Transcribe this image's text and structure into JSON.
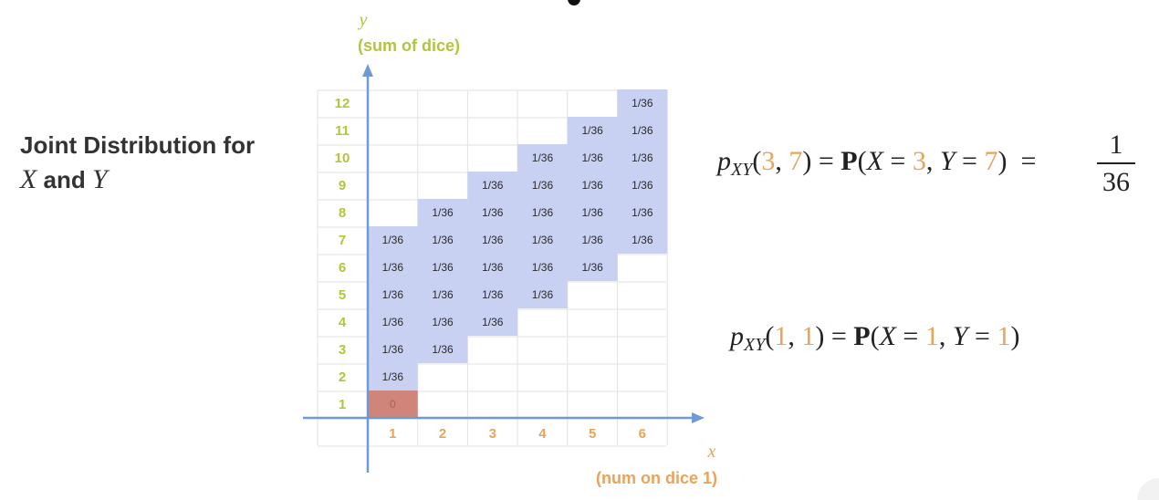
{
  "heading": {
    "line1": "Joint Distribution for",
    "var_x": "X",
    "and": " and ",
    "var_y": "Y"
  },
  "chart_data": {
    "type": "table",
    "x_axis": {
      "var": "x",
      "label": "(num on dice 1)",
      "ticks": [
        1,
        2,
        3,
        4,
        5,
        6
      ]
    },
    "y_axis": {
      "var": "y",
      "label": "(sum of dice)",
      "ticks": [
        1,
        2,
        3,
        4,
        5,
        6,
        7,
        8,
        9,
        10,
        11,
        12
      ]
    },
    "cells": [
      {
        "x": 1,
        "y": 1,
        "value": "0",
        "highlight": true
      },
      {
        "x": 1,
        "y": 2,
        "value": "1/36"
      },
      {
        "x": 1,
        "y": 3,
        "value": "1/36"
      },
      {
        "x": 1,
        "y": 4,
        "value": "1/36"
      },
      {
        "x": 1,
        "y": 5,
        "value": "1/36"
      },
      {
        "x": 1,
        "y": 6,
        "value": "1/36"
      },
      {
        "x": 1,
        "y": 7,
        "value": "1/36"
      },
      {
        "x": 2,
        "y": 3,
        "value": "1/36"
      },
      {
        "x": 2,
        "y": 4,
        "value": "1/36"
      },
      {
        "x": 2,
        "y": 5,
        "value": "1/36"
      },
      {
        "x": 2,
        "y": 6,
        "value": "1/36"
      },
      {
        "x": 2,
        "y": 7,
        "value": "1/36"
      },
      {
        "x": 2,
        "y": 8,
        "value": "1/36"
      },
      {
        "x": 3,
        "y": 4,
        "value": "1/36"
      },
      {
        "x": 3,
        "y": 5,
        "value": "1/36"
      },
      {
        "x": 3,
        "y": 6,
        "value": "1/36"
      },
      {
        "x": 3,
        "y": 7,
        "value": "1/36"
      },
      {
        "x": 3,
        "y": 8,
        "value": "1/36"
      },
      {
        "x": 3,
        "y": 9,
        "value": "1/36"
      },
      {
        "x": 4,
        "y": 5,
        "value": "1/36"
      },
      {
        "x": 4,
        "y": 6,
        "value": "1/36"
      },
      {
        "x": 4,
        "y": 7,
        "value": "1/36"
      },
      {
        "x": 4,
        "y": 8,
        "value": "1/36"
      },
      {
        "x": 4,
        "y": 9,
        "value": "1/36"
      },
      {
        "x": 4,
        "y": 10,
        "value": "1/36"
      },
      {
        "x": 5,
        "y": 6,
        "value": "1/36"
      },
      {
        "x": 5,
        "y": 7,
        "value": "1/36"
      },
      {
        "x": 5,
        "y": 8,
        "value": "1/36"
      },
      {
        "x": 5,
        "y": 9,
        "value": "1/36"
      },
      {
        "x": 5,
        "y": 10,
        "value": "1/36"
      },
      {
        "x": 5,
        "y": 11,
        "value": "1/36"
      },
      {
        "x": 6,
        "y": 7,
        "value": "1/36"
      },
      {
        "x": 6,
        "y": 8,
        "value": "1/36"
      },
      {
        "x": 6,
        "y": 9,
        "value": "1/36"
      },
      {
        "x": 6,
        "y": 10,
        "value": "1/36"
      },
      {
        "x": 6,
        "y": 11,
        "value": "1/36"
      },
      {
        "x": 6,
        "y": 12,
        "value": "1/36"
      }
    ]
  },
  "equations": {
    "eq1": {
      "p": "p",
      "sub": "XY",
      "open": "(",
      "a": "3",
      "comma": ", ",
      "b": "7",
      "close": ")",
      "equals": " = ",
      "P": "P",
      "lhs_open": "(",
      "X": "X",
      "eq_x": " = ",
      "xval": "3",
      "sep": ", ",
      "Y": "Y",
      "eq_y": " = ",
      "yval": "7",
      "lhs_close": ")",
      "equals2": "  = ",
      "frac_num": "1",
      "frac_den": "36"
    },
    "eq2": {
      "p": "p",
      "sub": "XY",
      "open": "(",
      "a": "1",
      "comma": ", ",
      "b": "1",
      "close": ")",
      "equals": " = ",
      "P": "P",
      "lhs_open": "(",
      "X": "X",
      "eq_x": " = ",
      "xval": "1",
      "sep": ", ",
      "Y": "Y",
      "eq_y": " = ",
      "yval": "1",
      "lhs_close": ")"
    }
  },
  "colors": {
    "cell_fill": "#c9d1f3",
    "highlight_fill": "#cf857a",
    "axis": "#6f9ad8",
    "x_label": "#eaa35a",
    "y_label": "#b4c43c",
    "grid": "#e2e2e2",
    "text": "#333333"
  }
}
